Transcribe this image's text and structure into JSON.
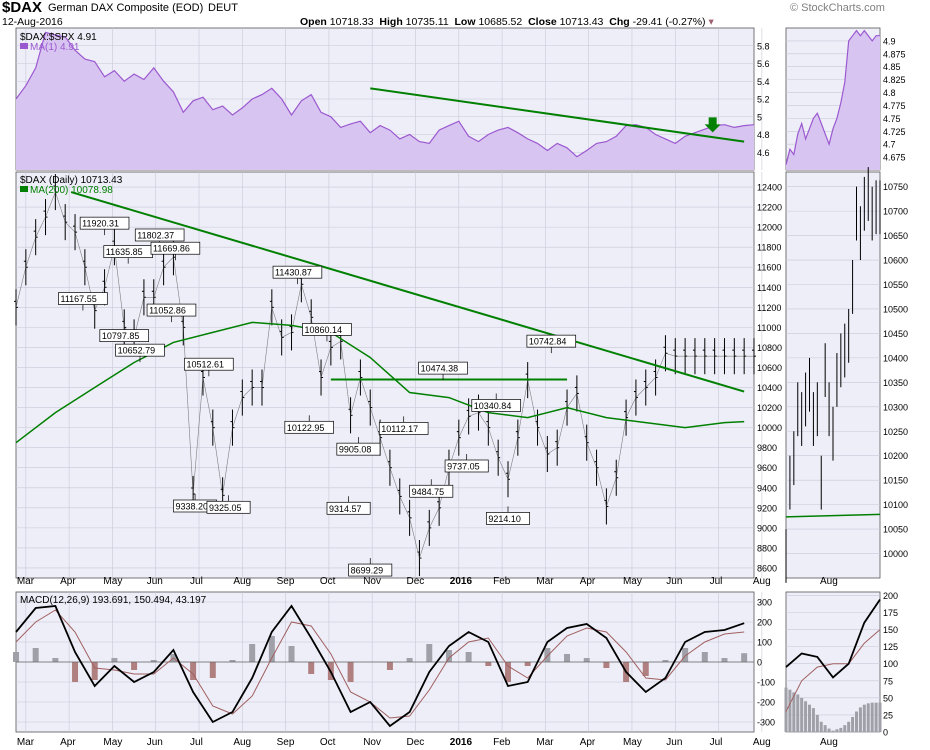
{
  "header": {
    "symbol": "$DAX",
    "name": "German DAX Composite (EOD)",
    "exchange": "DEUT",
    "date": "12-Aug-2016",
    "open_label": "Open",
    "open": "10718.33",
    "high_label": "High",
    "high": "10735.11",
    "low_label": "Low",
    "low": "10685.52",
    "close_label": "Close",
    "close": "10713.43",
    "chg_label": "Chg",
    "chg": "-29.41 (-0.27%)",
    "watermark": "© StockCharts.com"
  },
  "colors": {
    "panel_bg": "#eeeef8",
    "grid": "#c8c8d8",
    "purple_line": "#9b59d0",
    "purple_fill": "#d8c4f0",
    "green": "#008000",
    "price": "#000000",
    "hist": "#a0a0a8",
    "hist_neg": "#b08080",
    "signal": "#a06060"
  },
  "x_axis_labels": [
    "Mar",
    "Apr",
    "May",
    "Jun",
    "Jul",
    "Aug",
    "Sep",
    "Oct",
    "Nov",
    "Dec",
    "2016",
    "Feb",
    "Mar",
    "Apr",
    "May",
    "Jun",
    "Jul",
    "Aug"
  ],
  "x_axis_bold": [
    "2016"
  ],
  "zoom_x_labels": [
    "Aug"
  ],
  "chart_data": [
    {
      "type": "area",
      "panel": "ratio",
      "title": "$DAX:$SPX 4.91",
      "legend": "MA(1) 4.91",
      "ylim": [
        4.4,
        6.0
      ],
      "yticks": [
        4.6,
        4.8,
        5.0,
        5.2,
        5.4,
        5.6,
        5.8
      ],
      "series": [
        {
          "name": "$DAX:$SPX",
          "x": [
            0,
            5,
            10,
            15,
            20,
            25,
            30,
            35,
            40,
            45,
            50,
            55,
            60,
            65,
            70,
            75,
            80,
            85,
            90,
            95,
            100,
            105,
            110,
            115,
            120,
            125,
            130,
            135,
            140,
            145,
            150,
            155,
            160,
            165,
            170,
            175,
            180,
            185,
            190,
            195,
            200,
            205,
            210,
            215,
            220,
            225,
            230,
            235,
            240,
            245,
            250,
            255,
            260,
            265,
            270,
            275,
            280,
            285,
            290,
            295,
            300,
            305,
            310,
            315,
            320,
            325,
            330,
            335,
            340,
            345,
            350,
            355,
            360,
            365,
            370,
            375
          ],
          "values": [
            5.2,
            5.35,
            5.55,
            5.95,
            5.92,
            5.9,
            5.75,
            5.65,
            5.62,
            5.45,
            5.52,
            5.4,
            5.48,
            5.42,
            5.55,
            5.4,
            5.28,
            5.05,
            5.18,
            5.22,
            5.08,
            5.12,
            5.02,
            5.1,
            5.2,
            5.25,
            5.32,
            5.2,
            5.02,
            5.18,
            5.25,
            5.05,
            5.0,
            4.88,
            4.92,
            4.95,
            4.82,
            4.9,
            4.85,
            4.75,
            4.8,
            4.72,
            4.7,
            4.85,
            4.9,
            4.95,
            4.78,
            4.72,
            4.8,
            4.85,
            4.88,
            4.82,
            4.75,
            4.7,
            4.62,
            4.7,
            4.65,
            4.55,
            4.62,
            4.7,
            4.72,
            4.78,
            4.9,
            4.91,
            4.88,
            4.8,
            4.75,
            4.7,
            4.78,
            4.82,
            4.86,
            4.9,
            4.91,
            4.88,
            4.9,
            4.91
          ]
        }
      ],
      "trendline": {
        "x": [
          180,
          370
        ],
        "y": [
          5.32,
          4.72
        ]
      }
    },
    {
      "type": "line",
      "panel": "price",
      "title": "$DAX (Daily) 10713.43",
      "legend": "MA(200) 10078.98",
      "ylim": [
        8500,
        12550
      ],
      "yticks": [
        8600,
        8800,
        9000,
        9200,
        9400,
        9600,
        9800,
        10000,
        10200,
        10400,
        10600,
        10800,
        11000,
        11200,
        11400,
        11600,
        11800,
        12000,
        12200,
        12400
      ],
      "series": [
        {
          "name": "$DAX",
          "x": [
            0,
            5,
            10,
            15,
            20,
            25,
            30,
            35,
            40,
            45,
            50,
            55,
            60,
            65,
            70,
            75,
            80,
            85,
            90,
            95,
            100,
            105,
            110,
            115,
            120,
            125,
            130,
            135,
            140,
            145,
            150,
            155,
            160,
            165,
            170,
            175,
            180,
            185,
            190,
            195,
            200,
            205,
            210,
            215,
            220,
            225,
            230,
            235,
            240,
            245,
            250,
            255,
            260,
            265,
            270,
            275,
            280,
            285,
            290,
            295,
            300,
            305,
            310,
            315,
            320,
            325,
            330,
            335,
            340,
            345,
            350,
            355,
            360,
            365,
            370,
            375
          ],
          "values": [
            11200,
            11600,
            11900,
            12100,
            12350,
            12050,
            11950,
            11600,
            11167,
            11400,
            11800,
            11000,
            10900,
            11300,
            11300,
            11600,
            11700,
            11000,
            9338,
            10500,
            10000,
            9325,
            10000,
            10300,
            10400,
            10400,
            11200,
            10900,
            10950,
            11430,
            11100,
            10500,
            10800,
            10860,
            10123,
            10500,
            10200,
            9900,
            9600,
            9314,
            9100,
            8699,
            9000,
            9200,
            9600,
            9900,
            10112,
            10150,
            10000,
            9700,
            9485,
            9900,
            10474,
            10000,
            9737,
            9800,
            10200,
            10341,
            9850,
            9600,
            9214,
            9500,
            10100,
            10300,
            10400,
            10500,
            10742,
            10713,
            10713,
            10713,
            10713,
            10713,
            10713,
            10713,
            10713,
            10713
          ]
        },
        {
          "name": "MA(200)",
          "x": [
            0,
            20,
            40,
            60,
            80,
            100,
            120,
            140,
            160,
            180,
            200,
            220,
            240,
            260,
            280,
            300,
            320,
            340,
            360,
            370
          ],
          "values": [
            9850,
            10150,
            10400,
            10650,
            10850,
            10950,
            11050,
            11020,
            10950,
            10700,
            10350,
            10300,
            10150,
            10100,
            10200,
            10100,
            10050,
            10000,
            10050,
            10060
          ]
        }
      ],
      "annotations": [
        {
          "label": "11920.31",
          "x": 45,
          "y": 11920
        },
        {
          "label": "11635.85",
          "x": 57,
          "y": 11636
        },
        {
          "label": "11802.37",
          "x": 73,
          "y": 11802
        },
        {
          "label": "11669.86",
          "x": 81,
          "y": 11670
        },
        {
          "label": "11167.55",
          "x": 34,
          "y": 11168
        },
        {
          "label": "10797.85",
          "x": 55,
          "y": 10798
        },
        {
          "label": "11052.86",
          "x": 79,
          "y": 11053
        },
        {
          "label": "10652.79",
          "x": 63,
          "y": 10653
        },
        {
          "label": "10512.61",
          "x": 98,
          "y": 10513
        },
        {
          "label": "9338.20",
          "x": 91,
          "y": 9338
        },
        {
          "label": "9325.05",
          "x": 108,
          "y": 9325
        },
        {
          "label": "11430.87",
          "x": 143,
          "y": 11431
        },
        {
          "label": "10860.14",
          "x": 158,
          "y": 10860
        },
        {
          "label": "10122.95",
          "x": 149,
          "y": 10123
        },
        {
          "label": "9905.08",
          "x": 174,
          "y": 9905
        },
        {
          "label": "9314.57",
          "x": 169,
          "y": 9315
        },
        {
          "label": "8699.29",
          "x": 180,
          "y": 8699
        },
        {
          "label": "10112.17",
          "x": 197,
          "y": 10112
        },
        {
          "label": "10474.38",
          "x": 217,
          "y": 10474
        },
        {
          "label": "9484.75",
          "x": 211,
          "y": 9485
        },
        {
          "label": "9737.05",
          "x": 229,
          "y": 9737
        },
        {
          "label": "10340.84",
          "x": 244,
          "y": 10341
        },
        {
          "label": "9214.10",
          "x": 250,
          "y": 9214
        },
        {
          "label": "10742.84",
          "x": 272,
          "y": 10743
        }
      ],
      "trendline": {
        "x": [
          28,
          370
        ],
        "y": [
          12350,
          10360
        ]
      },
      "horizontal_line": {
        "x": [
          160,
          280
        ],
        "y": 10480
      }
    },
    {
      "type": "line",
      "panel": "macd",
      "title": "MACD(12,26,9) 193.691, 150.494, 43.197",
      "ylim": [
        -350,
        350
      ],
      "yticks": [
        -300,
        -200,
        -100,
        0,
        100,
        200,
        300
      ],
      "series": [
        {
          "name": "MACD",
          "x": [
            0,
            10,
            20,
            30,
            40,
            50,
            60,
            70,
            80,
            90,
            100,
            110,
            120,
            130,
            140,
            150,
            160,
            170,
            180,
            190,
            200,
            210,
            220,
            230,
            240,
            250,
            260,
            270,
            280,
            290,
            300,
            310,
            320,
            330,
            340,
            350,
            360,
            370
          ],
          "values": [
            150,
            270,
            280,
            50,
            -120,
            -20,
            -100,
            -50,
            60,
            -150,
            -300,
            -250,
            -80,
            150,
            280,
            120,
            -50,
            -250,
            -200,
            -320,
            -250,
            -50,
            80,
            150,
            100,
            -120,
            -100,
            100,
            170,
            190,
            120,
            -50,
            -150,
            -80,
            100,
            150,
            160,
            194
          ]
        },
        {
          "name": "Signal",
          "x": [
            0,
            10,
            20,
            30,
            40,
            50,
            60,
            70,
            80,
            90,
            100,
            110,
            120,
            130,
            140,
            150,
            160,
            170,
            180,
            190,
            200,
            210,
            220,
            230,
            240,
            250,
            260,
            270,
            280,
            290,
            300,
            310,
            320,
            330,
            340,
            350,
            360,
            370
          ],
          "values": [
            100,
            200,
            260,
            150,
            -30,
            -40,
            -60,
            -60,
            20,
            -60,
            -220,
            -260,
            -170,
            20,
            200,
            180,
            40,
            -150,
            -200,
            -280,
            -270,
            -140,
            20,
            100,
            120,
            -20,
            -80,
            30,
            130,
            170,
            150,
            50,
            -80,
            -90,
            30,
            100,
            140,
            150
          ]
        }
      ]
    },
    {
      "type": "area",
      "panel": "ratio-zoom",
      "ylim": [
        4.65,
        4.925
      ],
      "yticks": [
        4.675,
        4.7,
        4.725,
        4.75,
        4.775,
        4.8,
        4.825,
        4.85,
        4.875,
        4.9
      ],
      "series": [
        {
          "name": "$DAX:$SPX",
          "x": [
            0,
            1,
            2,
            3,
            4,
            5,
            6,
            7,
            8,
            9,
            10,
            11,
            12,
            13,
            14,
            15,
            16,
            17,
            18,
            19,
            20,
            21,
            22,
            23,
            24
          ],
          "values": [
            4.66,
            4.69,
            4.68,
            4.72,
            4.74,
            4.71,
            4.73,
            4.75,
            4.76,
            4.74,
            4.72,
            4.7,
            4.73,
            4.75,
            4.78,
            4.82,
            4.9,
            4.91,
            4.92,
            4.91,
            4.92,
            4.91,
            4.9,
            4.91,
            4.91
          ]
        }
      ]
    },
    {
      "type": "line",
      "panel": "price-zoom",
      "ylim": [
        9950,
        10780
      ],
      "yticks": [
        10000,
        10050,
        10100,
        10150,
        10200,
        10250,
        10300,
        10350,
        10400,
        10450,
        10500,
        10550,
        10600,
        10650,
        10700,
        10750
      ],
      "series": [
        {
          "name": "$DAX",
          "x": [
            0,
            1,
            2,
            3,
            4,
            5,
            6,
            7,
            8,
            9,
            10,
            11,
            12,
            13,
            14,
            15,
            16,
            17,
            18,
            19,
            20,
            21,
            22,
            23,
            24
          ],
          "values": [
            10000,
            10150,
            10200,
            10300,
            10280,
            10320,
            10350,
            10280,
            10300,
            10150,
            10380,
            10300,
            10250,
            10360,
            10400,
            10420,
            10450,
            10550,
            10700,
            10660,
            10720,
            10740,
            10700,
            10713,
            10713
          ]
        },
        {
          "name": "MA(200)",
          "x": [
            0,
            24
          ],
          "values": [
            10075,
            10080
          ]
        }
      ]
    },
    {
      "type": "bar",
      "panel": "macd-zoom",
      "ylim": [
        0,
        205
      ],
      "yticks": [
        0,
        25,
        50,
        75,
        100,
        125,
        150,
        175,
        200
      ],
      "series": [
        {
          "name": "MACD",
          "x": [
            0,
            4,
            8,
            12,
            16,
            20,
            24
          ],
          "values": [
            95,
            115,
            110,
            80,
            100,
            160,
            194
          ]
        },
        {
          "name": "Signal",
          "x": [
            0,
            4,
            8,
            12,
            16,
            20,
            24
          ],
          "values": [
            30,
            75,
            95,
            100,
            100,
            130,
            150
          ]
        },
        {
          "name": "Histogram",
          "x": [
            0,
            1,
            2,
            3,
            4,
            5,
            6,
            7,
            8,
            9,
            10,
            11,
            12,
            13,
            14,
            15,
            16,
            17,
            18,
            19,
            20,
            21,
            22,
            23,
            24
          ],
          "values": [
            65,
            62,
            58,
            55,
            50,
            45,
            40,
            35,
            25,
            15,
            10,
            5,
            2,
            4,
            6,
            10,
            15,
            22,
            30,
            36,
            40,
            42,
            43,
            43,
            43
          ]
        }
      ]
    }
  ]
}
